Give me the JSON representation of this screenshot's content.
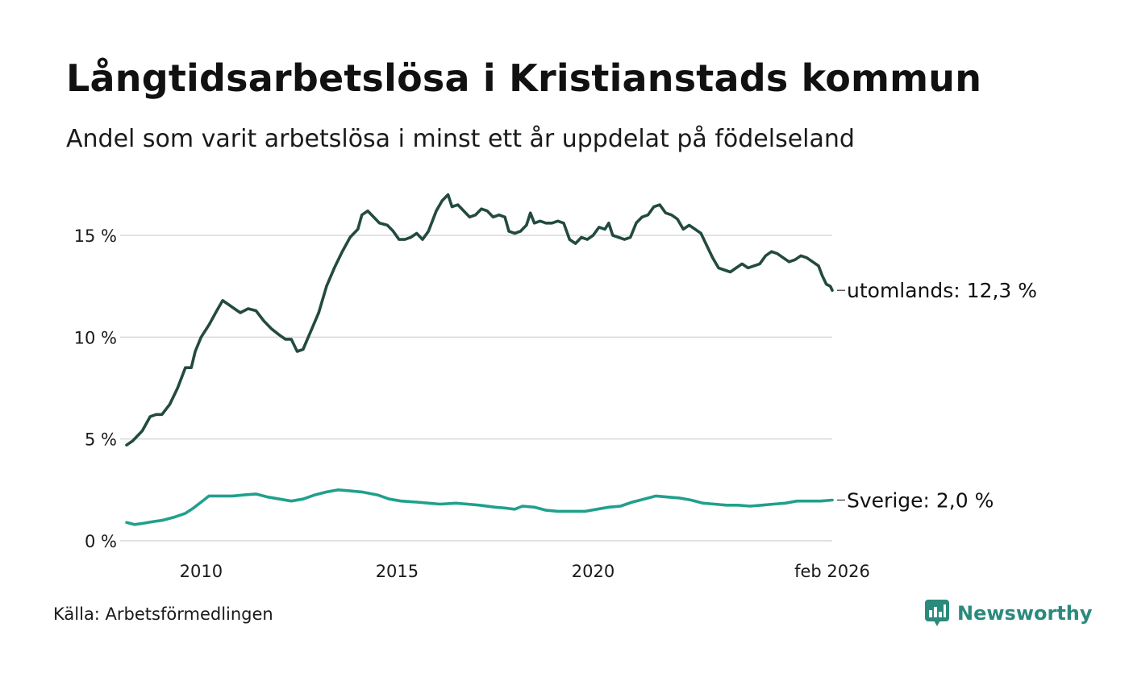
{
  "title": "Långtidsarbetslösa i Kristianstads kommun",
  "subtitle": "Andel som varit arbetslösa i minst ett år uppdelat på födelseland",
  "source": "Källa: Arbetsförmedlingen",
  "brand": {
    "name": "Newsworthy",
    "icon": "newsworthy-logo-icon",
    "color": "#2a8a7c"
  },
  "chart_data": {
    "type": "line",
    "title": "Långtidsarbetslösa i Kristianstads kommun",
    "xlabel": "",
    "ylabel": "",
    "ylim": [
      0,
      17.5
    ],
    "xlim": [
      2008.1,
      2026.1
    ],
    "grid": true,
    "y_ticks": [
      {
        "value": 0,
        "label": "0 %"
      },
      {
        "value": 5,
        "label": "5 %"
      },
      {
        "value": 10,
        "label": "10 %"
      },
      {
        "value": 15,
        "label": "15 %"
      }
    ],
    "x_ticks": [
      {
        "value": 2010,
        "label": "2010"
      },
      {
        "value": 2015,
        "label": "2015"
      },
      {
        "value": 2020,
        "label": "2020"
      },
      {
        "value": 2026.1,
        "label": "feb 2026"
      }
    ],
    "series": [
      {
        "name": "utomlands",
        "end_label": "utomlands: 12,3 %",
        "color": "#234a40",
        "points": [
          [
            2008.1,
            4.7
          ],
          [
            2008.25,
            4.9
          ],
          [
            2008.5,
            5.4
          ],
          [
            2008.7,
            6.1
          ],
          [
            2008.85,
            6.2
          ],
          [
            2009.0,
            6.2
          ],
          [
            2009.2,
            6.7
          ],
          [
            2009.4,
            7.5
          ],
          [
            2009.6,
            8.5
          ],
          [
            2009.75,
            8.5
          ],
          [
            2009.85,
            9.3
          ],
          [
            2010.0,
            10.0
          ],
          [
            2010.2,
            10.6
          ],
          [
            2010.4,
            11.3
          ],
          [
            2010.55,
            11.8
          ],
          [
            2010.7,
            11.6
          ],
          [
            2010.85,
            11.4
          ],
          [
            2011.0,
            11.2
          ],
          [
            2011.2,
            11.4
          ],
          [
            2011.4,
            11.3
          ],
          [
            2011.6,
            10.8
          ],
          [
            2011.8,
            10.4
          ],
          [
            2012.0,
            10.1
          ],
          [
            2012.15,
            9.9
          ],
          [
            2012.3,
            9.9
          ],
          [
            2012.45,
            9.3
          ],
          [
            2012.6,
            9.4
          ],
          [
            2012.8,
            10.3
          ],
          [
            2013.0,
            11.2
          ],
          [
            2013.2,
            12.5
          ],
          [
            2013.4,
            13.4
          ],
          [
            2013.6,
            14.2
          ],
          [
            2013.8,
            14.9
          ],
          [
            2014.0,
            15.3
          ],
          [
            2014.1,
            16.0
          ],
          [
            2014.25,
            16.2
          ],
          [
            2014.4,
            15.9
          ],
          [
            2014.55,
            15.6
          ],
          [
            2014.75,
            15.5
          ],
          [
            2014.9,
            15.2
          ],
          [
            2015.05,
            14.8
          ],
          [
            2015.2,
            14.8
          ],
          [
            2015.35,
            14.9
          ],
          [
            2015.5,
            15.1
          ],
          [
            2015.65,
            14.8
          ],
          [
            2015.8,
            15.2
          ],
          [
            2016.0,
            16.2
          ],
          [
            2016.15,
            16.7
          ],
          [
            2016.3,
            17.0
          ],
          [
            2016.4,
            16.4
          ],
          [
            2016.55,
            16.5
          ],
          [
            2016.7,
            16.2
          ],
          [
            2016.85,
            15.9
          ],
          [
            2017.0,
            16.0
          ],
          [
            2017.15,
            16.3
          ],
          [
            2017.3,
            16.2
          ],
          [
            2017.45,
            15.9
          ],
          [
            2017.6,
            16.0
          ],
          [
            2017.75,
            15.9
          ],
          [
            2017.85,
            15.2
          ],
          [
            2018.0,
            15.1
          ],
          [
            2018.15,
            15.2
          ],
          [
            2018.3,
            15.5
          ],
          [
            2018.4,
            16.1
          ],
          [
            2018.5,
            15.6
          ],
          [
            2018.65,
            15.7
          ],
          [
            2018.8,
            15.6
          ],
          [
            2018.95,
            15.6
          ],
          [
            2019.1,
            15.7
          ],
          [
            2019.25,
            15.6
          ],
          [
            2019.4,
            14.8
          ],
          [
            2019.55,
            14.6
          ],
          [
            2019.7,
            14.9
          ],
          [
            2019.85,
            14.8
          ],
          [
            2020.0,
            15.0
          ],
          [
            2020.15,
            15.4
          ],
          [
            2020.3,
            15.3
          ],
          [
            2020.4,
            15.6
          ],
          [
            2020.5,
            15.0
          ],
          [
            2020.65,
            14.9
          ],
          [
            2020.8,
            14.8
          ],
          [
            2020.95,
            14.9
          ],
          [
            2021.1,
            15.6
          ],
          [
            2021.25,
            15.9
          ],
          [
            2021.4,
            16.0
          ],
          [
            2021.55,
            16.4
          ],
          [
            2021.7,
            16.5
          ],
          [
            2021.85,
            16.1
          ],
          [
            2022.0,
            16.0
          ],
          [
            2022.15,
            15.8
          ],
          [
            2022.3,
            15.3
          ],
          [
            2022.45,
            15.5
          ],
          [
            2022.6,
            15.3
          ],
          [
            2022.75,
            15.1
          ],
          [
            2022.9,
            14.5
          ],
          [
            2023.05,
            13.9
          ],
          [
            2023.2,
            13.4
          ],
          [
            2023.35,
            13.3
          ],
          [
            2023.5,
            13.2
          ],
          [
            2023.65,
            13.4
          ],
          [
            2023.8,
            13.6
          ],
          [
            2023.95,
            13.4
          ],
          [
            2024.1,
            13.5
          ],
          [
            2024.25,
            13.6
          ],
          [
            2024.4,
            14.0
          ],
          [
            2024.55,
            14.2
          ],
          [
            2024.7,
            14.1
          ],
          [
            2024.85,
            13.9
          ],
          [
            2025.0,
            13.7
          ],
          [
            2025.15,
            13.8
          ],
          [
            2025.3,
            14.0
          ],
          [
            2025.45,
            13.9
          ],
          [
            2025.6,
            13.7
          ],
          [
            2025.75,
            13.5
          ],
          [
            2025.85,
            13.0
          ],
          [
            2025.95,
            12.6
          ],
          [
            2026.05,
            12.5
          ],
          [
            2026.1,
            12.3
          ]
        ]
      },
      {
        "name": "Sverige",
        "end_label": "Sverige:  2,0 %",
        "color": "#20a08c",
        "points": [
          [
            2008.1,
            0.9
          ],
          [
            2008.3,
            0.8
          ],
          [
            2008.5,
            0.85
          ],
          [
            2008.8,
            0.95
          ],
          [
            2009.0,
            1.0
          ],
          [
            2009.3,
            1.15
          ],
          [
            2009.6,
            1.35
          ],
          [
            2009.8,
            1.6
          ],
          [
            2010.0,
            1.9
          ],
          [
            2010.2,
            2.2
          ],
          [
            2010.5,
            2.2
          ],
          [
            2010.8,
            2.2
          ],
          [
            2011.1,
            2.25
          ],
          [
            2011.4,
            2.3
          ],
          [
            2011.7,
            2.15
          ],
          [
            2012.0,
            2.05
          ],
          [
            2012.3,
            1.95
          ],
          [
            2012.6,
            2.05
          ],
          [
            2012.9,
            2.25
          ],
          [
            2013.2,
            2.4
          ],
          [
            2013.5,
            2.5
          ],
          [
            2013.8,
            2.45
          ],
          [
            2014.1,
            2.4
          ],
          [
            2014.5,
            2.25
          ],
          [
            2014.8,
            2.05
          ],
          [
            2015.1,
            1.95
          ],
          [
            2015.5,
            1.9
          ],
          [
            2015.8,
            1.85
          ],
          [
            2016.1,
            1.8
          ],
          [
            2016.5,
            1.85
          ],
          [
            2016.8,
            1.8
          ],
          [
            2017.1,
            1.75
          ],
          [
            2017.5,
            1.65
          ],
          [
            2017.8,
            1.6
          ],
          [
            2018.0,
            1.55
          ],
          [
            2018.2,
            1.7
          ],
          [
            2018.5,
            1.65
          ],
          [
            2018.8,
            1.5
          ],
          [
            2019.1,
            1.45
          ],
          [
            2019.5,
            1.45
          ],
          [
            2019.8,
            1.45
          ],
          [
            2020.1,
            1.55
          ],
          [
            2020.4,
            1.65
          ],
          [
            2020.7,
            1.7
          ],
          [
            2021.0,
            1.9
          ],
          [
            2021.3,
            2.05
          ],
          [
            2021.6,
            2.2
          ],
          [
            2021.9,
            2.15
          ],
          [
            2022.2,
            2.1
          ],
          [
            2022.5,
            2.0
          ],
          [
            2022.8,
            1.85
          ],
          [
            2023.1,
            1.8
          ],
          [
            2023.4,
            1.75
          ],
          [
            2023.7,
            1.75
          ],
          [
            2024.0,
            1.7
          ],
          [
            2024.3,
            1.75
          ],
          [
            2024.6,
            1.8
          ],
          [
            2024.9,
            1.85
          ],
          [
            2025.2,
            1.95
          ],
          [
            2025.5,
            1.95
          ],
          [
            2025.8,
            1.95
          ],
          [
            2026.1,
            2.0
          ]
        ]
      }
    ]
  }
}
